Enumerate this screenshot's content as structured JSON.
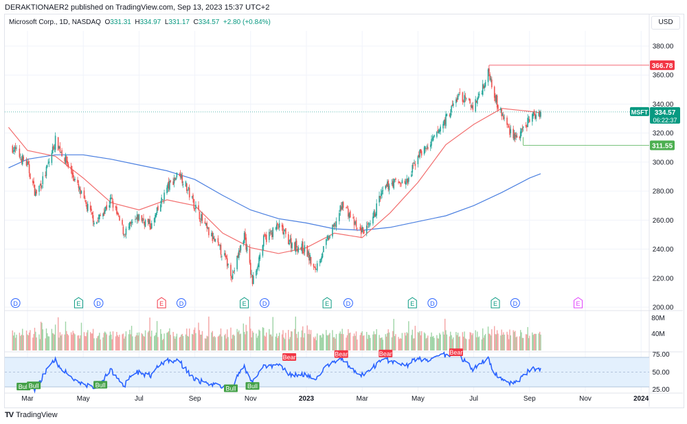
{
  "header": {
    "published": "DERAKTIONAER2 published on TradingView.com, Sep 13, 2023 15:37 UTC+2"
  },
  "legend": {
    "symbol": "Microsoft Corp., 1D, NASDAQ",
    "o_label": "O",
    "o": "331.31",
    "h_label": "H",
    "h": "334.97",
    "l_label": "L",
    "l": "331.17",
    "c_label": "C",
    "c": "334.57",
    "change": "+2.80 (+0.84%)"
  },
  "currency": "USD",
  "footer": {
    "brand": "TradingView",
    "logo": "TV"
  },
  "colors": {
    "up": "#26a69a",
    "down": "#ef5350",
    "ma50": "#f26d6d",
    "ma200": "#4a7fe0",
    "rsi": "#2962ff",
    "high_line": "#f23645",
    "low_line": "#4caf50"
  },
  "price_labels": {
    "high": "366.78",
    "low": "311.55",
    "last": "334.57",
    "symbol": "MSFT",
    "countdown": "06:22:37"
  },
  "chart_data": {
    "type": "candlestick",
    "price_axis": {
      "ticks": [
        "380.00",
        "360.00",
        "340.00",
        "320.00",
        "300.00",
        "280.00",
        "260.00",
        "240.00",
        "220.00",
        "200.00"
      ],
      "range": [
        200,
        380
      ]
    },
    "volume_axis": {
      "ticks": [
        "80M",
        "40M"
      ]
    },
    "rsi_axis": {
      "ticks": [
        "75.00",
        "50.00",
        "25.00"
      ],
      "band": [
        25,
        75
      ]
    },
    "time_axis": [
      "Mar",
      "May",
      "Jul",
      "Sep",
      "Nov",
      "2023",
      "Mar",
      "May",
      "Jul",
      "Sep",
      "Nov",
      "2024"
    ],
    "close_path": [
      [
        "2022-02-14",
        310
      ],
      [
        "2022-03-01",
        298
      ],
      [
        "2022-03-10",
        278
      ],
      [
        "2022-03-20",
        290
      ],
      [
        "2022-04-01",
        315
      ],
      [
        "2022-04-15",
        298
      ],
      [
        "2022-05-01",
        274
      ],
      [
        "2022-05-15",
        258
      ],
      [
        "2022-06-01",
        274
      ],
      [
        "2022-06-15",
        251
      ],
      [
        "2022-07-01",
        262
      ],
      [
        "2022-07-15",
        256
      ],
      [
        "2022-08-01",
        282
      ],
      [
        "2022-08-15",
        293
      ],
      [
        "2022-09-01",
        270
      ],
      [
        "2022-09-15",
        252
      ],
      [
        "2022-10-01",
        237
      ],
      [
        "2022-10-12",
        222
      ],
      [
        "2022-10-25",
        250
      ],
      [
        "2022-11-03",
        217
      ],
      [
        "2022-11-15",
        246
      ],
      [
        "2022-12-01",
        256
      ],
      [
        "2022-12-15",
        244
      ],
      [
        "2023-01-01",
        239
      ],
      [
        "2023-01-10",
        225
      ],
      [
        "2023-01-20",
        240
      ],
      [
        "2023-02-01",
        256
      ],
      [
        "2023-02-10",
        272
      ],
      [
        "2023-02-25",
        252
      ],
      [
        "2023-03-10",
        255
      ],
      [
        "2023-03-20",
        275
      ],
      [
        "2023-04-01",
        286
      ],
      [
        "2023-04-20",
        286
      ],
      [
        "2023-05-01",
        305
      ],
      [
        "2023-05-15",
        312
      ],
      [
        "2023-06-01",
        330
      ],
      [
        "2023-06-15",
        346
      ],
      [
        "2023-07-01",
        338
      ],
      [
        "2023-07-18",
        362
      ],
      [
        "2023-07-28",
        338
      ],
      [
        "2023-08-10",
        322
      ],
      [
        "2023-08-20",
        316
      ],
      [
        "2023-09-01",
        330
      ],
      [
        "2023-09-13",
        334.57
      ]
    ],
    "ma50": [
      [
        "2022-02-10",
        324
      ],
      [
        "2022-03-01",
        308
      ],
      [
        "2022-04-01",
        304
      ],
      [
        "2022-05-01",
        289
      ],
      [
        "2022-06-01",
        272
      ],
      [
        "2022-07-01",
        267
      ],
      [
        "2022-08-01",
        274
      ],
      [
        "2022-09-01",
        270
      ],
      [
        "2022-10-01",
        251
      ],
      [
        "2022-11-01",
        241
      ],
      [
        "2022-12-01",
        237
      ],
      [
        "2023-01-01",
        241
      ],
      [
        "2023-02-01",
        251
      ],
      [
        "2023-03-01",
        248
      ],
      [
        "2023-04-01",
        265
      ],
      [
        "2023-05-01",
        286
      ],
      [
        "2023-06-01",
        312
      ],
      [
        "2023-07-01",
        326
      ],
      [
        "2023-08-01",
        337
      ],
      [
        "2023-09-01",
        335
      ],
      [
        "2023-09-13",
        334
      ]
    ],
    "ma200": [
      [
        "2022-02-10",
        296
      ],
      [
        "2022-03-01",
        302
      ],
      [
        "2022-04-01",
        305
      ],
      [
        "2022-05-01",
        305
      ],
      [
        "2022-06-01",
        302
      ],
      [
        "2022-07-01",
        298
      ],
      [
        "2022-08-01",
        294
      ],
      [
        "2022-09-01",
        288
      ],
      [
        "2022-10-01",
        277
      ],
      [
        "2022-11-01",
        267
      ],
      [
        "2022-12-01",
        261
      ],
      [
        "2023-01-01",
        258
      ],
      [
        "2023-02-01",
        254
      ],
      [
        "2023-03-01",
        253
      ],
      [
        "2023-04-01",
        255
      ],
      [
        "2023-05-01",
        259
      ],
      [
        "2023-06-01",
        263
      ],
      [
        "2023-07-01",
        270
      ],
      [
        "2023-08-01",
        279
      ],
      [
        "2023-09-01",
        289
      ],
      [
        "2023-09-13",
        292
      ]
    ],
    "high_marker": {
      "date": "2023-07-18",
      "value": 366.78
    },
    "low_marker": {
      "date": "2023-08-25",
      "value": 311.55
    },
    "events": [
      {
        "type": "D",
        "date": "2022-02-17",
        "color": "#2962ff"
      },
      {
        "type": "E",
        "date": "2022-04-26",
        "color": "#089981"
      },
      {
        "type": "D",
        "date": "2022-05-18",
        "color": "#2962ff"
      },
      {
        "type": "E",
        "date": "2022-07-26",
        "color": "#f23645"
      },
      {
        "type": "D",
        "date": "2022-08-17",
        "color": "#2962ff"
      },
      {
        "type": "E",
        "date": "2022-10-25",
        "color": "#089981"
      },
      {
        "type": "D",
        "date": "2022-11-16",
        "color": "#2962ff"
      },
      {
        "type": "E",
        "date": "2023-01-24",
        "color": "#089981"
      },
      {
        "type": "D",
        "date": "2023-02-15",
        "color": "#2962ff"
      },
      {
        "type": "E",
        "date": "2023-04-25",
        "color": "#089981"
      },
      {
        "type": "D",
        "date": "2023-05-17",
        "color": "#2962ff"
      },
      {
        "type": "E",
        "date": "2023-07-25",
        "color": "#089981"
      },
      {
        "type": "D",
        "date": "2023-08-16",
        "color": "#2962ff"
      },
      {
        "type": "E",
        "date": "2023-10-24",
        "color": "#e040fb"
      }
    ],
    "divergences": [
      {
        "label": "Bull",
        "date": "2022-02-25",
        "rsi": 32
      },
      {
        "label": "Bull",
        "date": "2022-03-08",
        "rsi": 34
      },
      {
        "label": "Bull",
        "date": "2022-05-20",
        "rsi": 35
      },
      {
        "label": "Bull",
        "date": "2022-10-10",
        "rsi": 29
      },
      {
        "label": "Bull",
        "date": "2022-11-03",
        "rsi": 33
      },
      {
        "label": "Bear",
        "date": "2022-12-13",
        "rsi": 68
      },
      {
        "label": "Bear",
        "date": "2023-02-08",
        "rsi": 73
      },
      {
        "label": "Bear",
        "date": "2023-03-27",
        "rsi": 74
      },
      {
        "label": "Bear",
        "date": "2023-06-12",
        "rsi": 76
      }
    ]
  }
}
